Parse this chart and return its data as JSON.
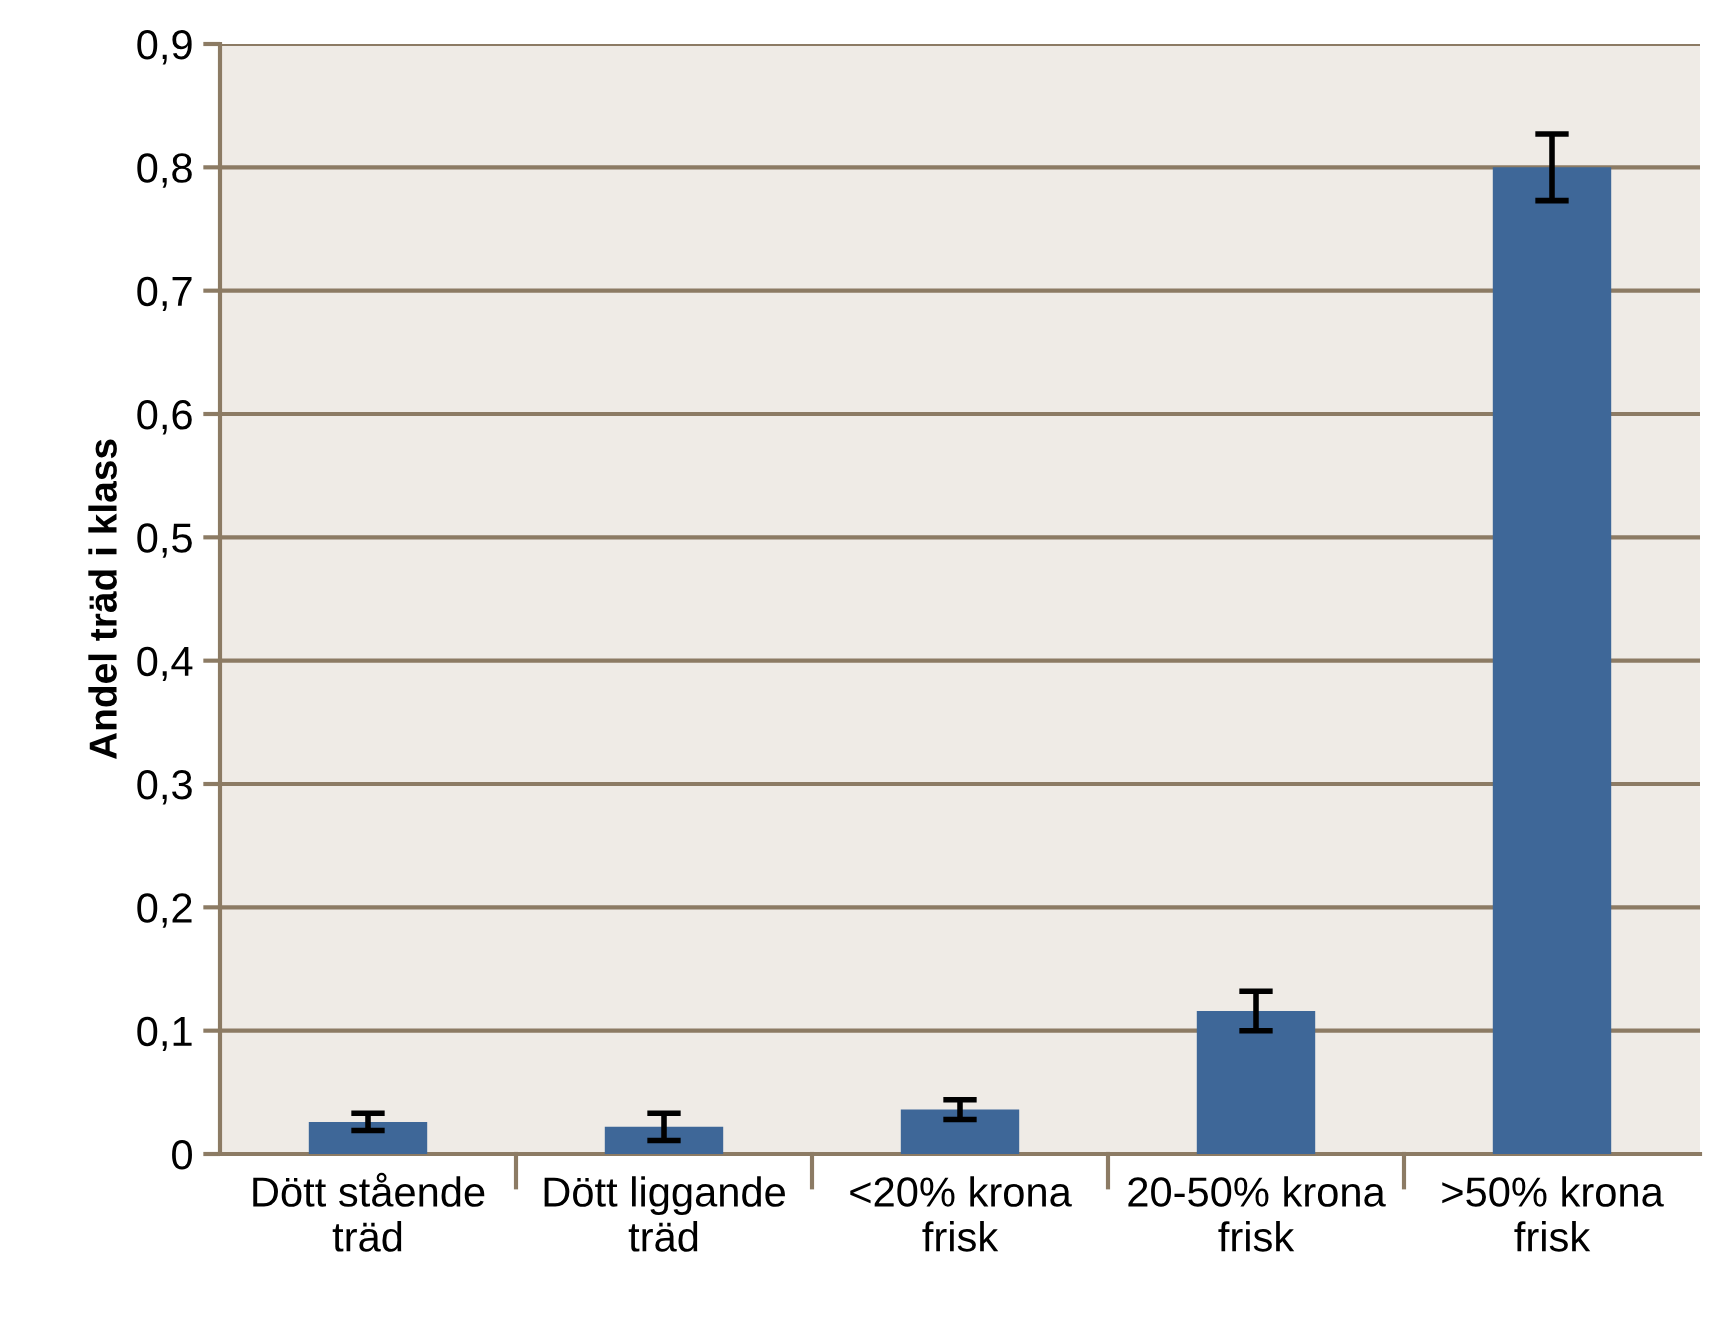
{
  "chart_data": {
    "type": "bar",
    "ylabel": "Andel träd i klass",
    "categories": [
      "Dött stående\nträd",
      "Dött liggande\nträd",
      "<20% krona\nfrisk",
      "20-50% krona\nfrisk",
      ">50% krona\nfrisk"
    ],
    "values": [
      0.026,
      0.022,
      0.036,
      0.116,
      0.8
    ],
    "errors": [
      0.007,
      0.011,
      0.008,
      0.016,
      0.027
    ],
    "color": "#3e6798",
    "ylim": [
      0,
      0.9
    ],
    "yticks": [
      {
        "value": 0,
        "label": "0"
      },
      {
        "value": 0.1,
        "label": "0,1"
      },
      {
        "value": 0.2,
        "label": "0,2"
      },
      {
        "value": 0.3,
        "label": "0,3"
      },
      {
        "value": 0.4,
        "label": "0,4"
      },
      {
        "value": 0.5,
        "label": "0,5"
      },
      {
        "value": 0.6,
        "label": "0,6"
      },
      {
        "value": 0.7,
        "label": "0,7"
      },
      {
        "value": 0.8,
        "label": "0,8"
      },
      {
        "value": 0.9,
        "label": "0,9"
      }
    ],
    "grid": "y"
  }
}
